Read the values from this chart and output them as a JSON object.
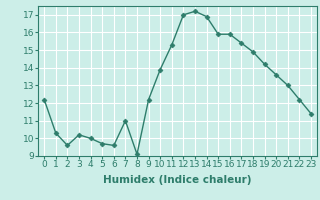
{
  "x": [
    0,
    1,
    2,
    3,
    4,
    5,
    6,
    7,
    8,
    9,
    10,
    11,
    12,
    13,
    14,
    15,
    16,
    17,
    18,
    19,
    20,
    21,
    22,
    23
  ],
  "y": [
    12.2,
    10.3,
    9.6,
    10.2,
    10.0,
    9.7,
    9.6,
    11.0,
    9.1,
    12.2,
    13.9,
    15.3,
    17.0,
    17.2,
    16.9,
    15.9,
    15.9,
    15.4,
    14.9,
    14.2,
    13.6,
    13.0,
    12.2,
    11.4
  ],
  "xlabel": "Humidex (Indice chaleur)",
  "ylim": [
    9,
    17.5
  ],
  "xlim": [
    -0.5,
    23.5
  ],
  "yticks": [
    9,
    10,
    11,
    12,
    13,
    14,
    15,
    16,
    17
  ],
  "xticks": [
    0,
    1,
    2,
    3,
    4,
    5,
    6,
    7,
    8,
    9,
    10,
    11,
    12,
    13,
    14,
    15,
    16,
    17,
    18,
    19,
    20,
    21,
    22,
    23
  ],
  "line_color": "#2e7d6b",
  "marker": "D",
  "marker_size": 2.5,
  "bg_color": "#cceee8",
  "grid_color": "#ffffff",
  "tick_label_fontsize": 6.5,
  "xlabel_fontsize": 7.5
}
